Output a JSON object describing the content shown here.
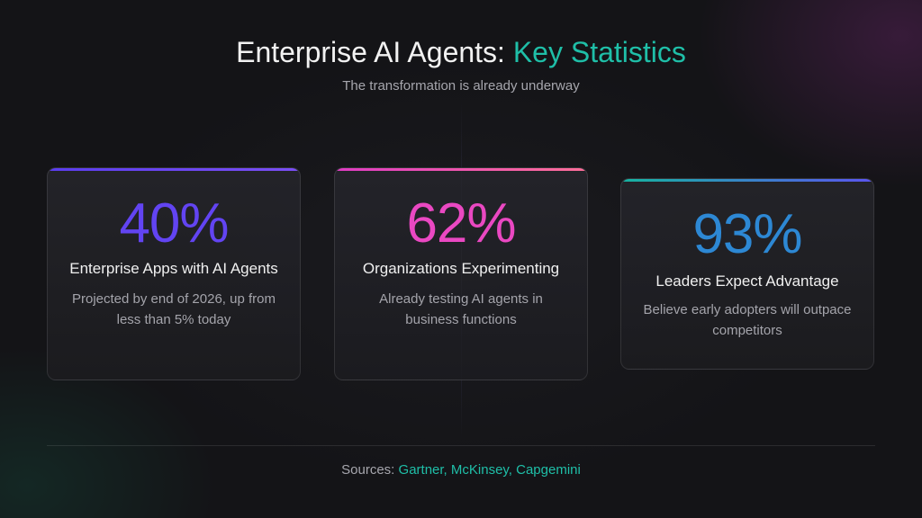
{
  "header": {
    "title_main": "Enterprise AI Agents: ",
    "title_accent": "Key Statistics",
    "subtitle": "The transformation is already underway"
  },
  "cards": [
    {
      "stat": "40%",
      "label": "Enterprise Apps with AI Agents",
      "description": "Projected by end of 2026, up from less than 5% today",
      "accent_color": "#6244f2"
    },
    {
      "stat": "62%",
      "label": "Organizations Experimenting",
      "description": "Already testing AI agents in business functions",
      "accent_color": "#ea48c2"
    },
    {
      "stat": "93%",
      "label": "Leaders Expect Advantage",
      "description": "Believe early adopters will outpace competitors",
      "accent_color": "#2d88d4"
    }
  ],
  "footer": {
    "prefix": "Sources: ",
    "sources": "Gartner, McKinsey, Capgemini"
  },
  "colors": {
    "background": "#141417",
    "teal_accent": "#1fbfa8"
  }
}
